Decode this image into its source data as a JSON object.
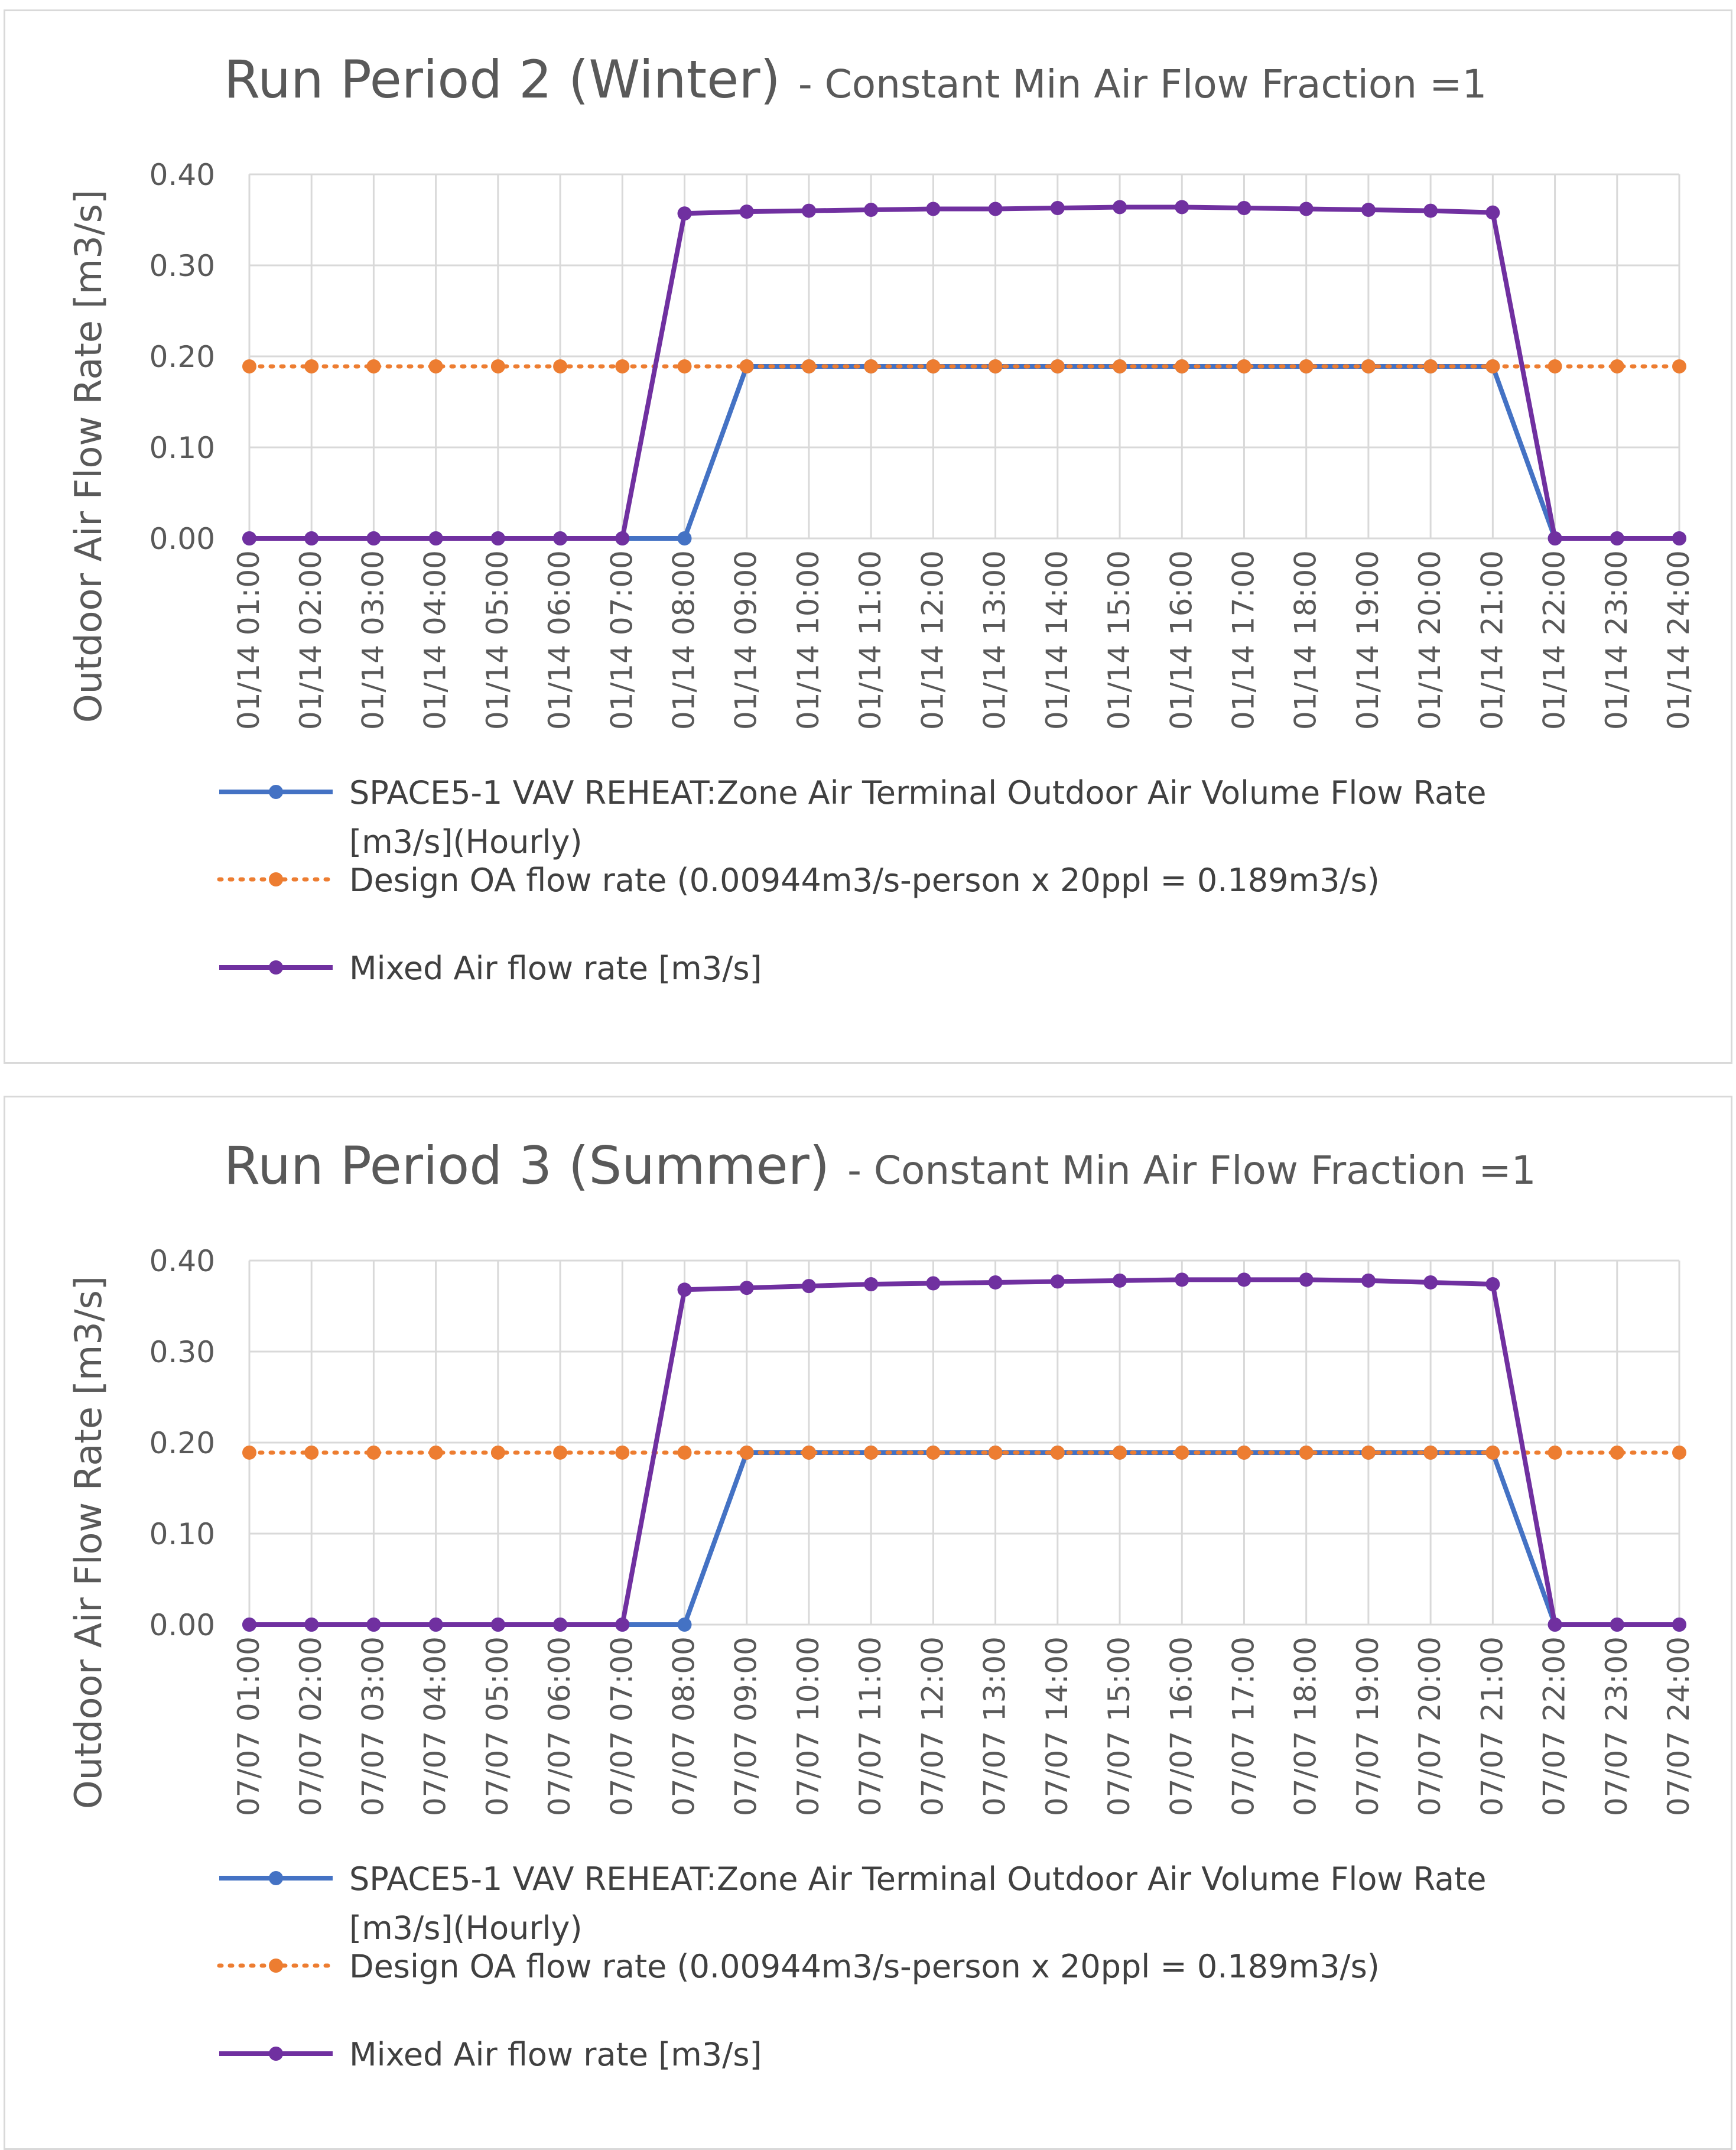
{
  "colors": {
    "outdoor_air": "#4472c4",
    "design_oa": "#ed7d31",
    "mixed_air": "#7030a0",
    "grid": "#d9d9d9",
    "text": "#595959"
  },
  "chart_data": [
    {
      "type": "line",
      "title": "Run Period 2 (Winter)",
      "subtitle": "- Constant Min Air Flow Fraction =1",
      "ylabel": "Outdoor Air Flow Rate [m3/s]",
      "xlabel": "",
      "ylim": [
        0,
        0.4
      ],
      "yticks": [
        "0.00",
        "0.10",
        "0.20",
        "0.30",
        "0.40"
      ],
      "grid": true,
      "legend_position": "bottom",
      "categories": [
        "01/14  01:00",
        "01/14  02:00",
        "01/14  03:00",
        "01/14  04:00",
        "01/14  05:00",
        "01/14  06:00",
        "01/14  07:00",
        "01/14  08:00",
        "01/14  09:00",
        "01/14  10:00",
        "01/14  11:00",
        "01/14  12:00",
        "01/14  13:00",
        "01/14  14:00",
        "01/14  15:00",
        "01/14  16:00",
        "01/14  17:00",
        "01/14  18:00",
        "01/14  19:00",
        "01/14  20:00",
        "01/14  21:00",
        "01/14  22:00",
        "01/14  23:00",
        "01/14  24:00"
      ],
      "series": [
        {
          "name": "SPACE5-1 VAV REHEAT:Zone Air Terminal Outdoor Air Volume Flow Rate [m3/s](Hourly)",
          "legend_lines": [
            "SPACE5-1 VAV REHEAT:Zone Air Terminal Outdoor Air Volume Flow Rate",
            "[m3/s](Hourly)"
          ],
          "color_key": "outdoor_air",
          "dash": "solid",
          "values": [
            0,
            0,
            0,
            0,
            0,
            0,
            0,
            0,
            0.189,
            0.189,
            0.189,
            0.189,
            0.189,
            0.189,
            0.189,
            0.189,
            0.189,
            0.189,
            0.189,
            0.189,
            0.189,
            0,
            0,
            0
          ]
        },
        {
          "name": "Design OA flow rate (0.00944m3/s-person x 20ppl = 0.189m3/s)",
          "legend_lines": [
            "Design OA flow rate (0.00944m3/s-person x 20ppl = 0.189m3/s)"
          ],
          "color_key": "design_oa",
          "dash": "dotted",
          "values": [
            0.189,
            0.189,
            0.189,
            0.189,
            0.189,
            0.189,
            0.189,
            0.189,
            0.189,
            0.189,
            0.189,
            0.189,
            0.189,
            0.189,
            0.189,
            0.189,
            0.189,
            0.189,
            0.189,
            0.189,
            0.189,
            0.189,
            0.189,
            0.189
          ]
        },
        {
          "name": "Mixed Air flow rate [m3/s]",
          "legend_lines": [
            "Mixed Air flow rate [m3/s]"
          ],
          "color_key": "mixed_air",
          "dash": "solid",
          "values": [
            0,
            0,
            0,
            0,
            0,
            0,
            0,
            0.357,
            0.359,
            0.36,
            0.361,
            0.362,
            0.362,
            0.363,
            0.364,
            0.364,
            0.363,
            0.362,
            0.361,
            0.36,
            0.358,
            0,
            0,
            0
          ]
        }
      ]
    },
    {
      "type": "line",
      "title": "Run Period 3 (Summer)",
      "subtitle": "- Constant Min Air Flow Fraction =1",
      "ylabel": "Outdoor Air Flow Rate [m3/s]",
      "xlabel": "",
      "ylim": [
        0,
        0.4
      ],
      "yticks": [
        "0.00",
        "0.10",
        "0.20",
        "0.30",
        "0.40"
      ],
      "grid": true,
      "legend_position": "bottom",
      "categories": [
        "07/07  01:00",
        "07/07  02:00",
        "07/07  03:00",
        "07/07  04:00",
        "07/07  05:00",
        "07/07  06:00",
        "07/07  07:00",
        "07/07  08:00",
        "07/07  09:00",
        "07/07  10:00",
        "07/07  11:00",
        "07/07  12:00",
        "07/07  13:00",
        "07/07  14:00",
        "07/07  15:00",
        "07/07  16:00",
        "07/07  17:00",
        "07/07  18:00",
        "07/07  19:00",
        "07/07  20:00",
        "07/07  21:00",
        "07/07  22:00",
        "07/07  23:00",
        "07/07  24:00"
      ],
      "series": [
        {
          "name": "SPACE5-1 VAV REHEAT:Zone Air Terminal Outdoor Air Volume Flow Rate [m3/s](Hourly)",
          "legend_lines": [
            "SPACE5-1 VAV REHEAT:Zone Air Terminal Outdoor Air Volume Flow Rate",
            "[m3/s](Hourly)"
          ],
          "color_key": "outdoor_air",
          "dash": "solid",
          "values": [
            0,
            0,
            0,
            0,
            0,
            0,
            0,
            0,
            0.189,
            0.189,
            0.189,
            0.189,
            0.189,
            0.189,
            0.189,
            0.189,
            0.189,
            0.189,
            0.189,
            0.189,
            0.189,
            0,
            0,
            0
          ]
        },
        {
          "name": "Design OA flow rate (0.00944m3/s-person x 20ppl = 0.189m3/s)",
          "legend_lines": [
            "Design OA flow rate (0.00944m3/s-person x 20ppl = 0.189m3/s)"
          ],
          "color_key": "design_oa",
          "dash": "dotted",
          "values": [
            0.189,
            0.189,
            0.189,
            0.189,
            0.189,
            0.189,
            0.189,
            0.189,
            0.189,
            0.189,
            0.189,
            0.189,
            0.189,
            0.189,
            0.189,
            0.189,
            0.189,
            0.189,
            0.189,
            0.189,
            0.189,
            0.189,
            0.189,
            0.189
          ]
        },
        {
          "name": "Mixed Air flow rate [m3/s]",
          "legend_lines": [
            "Mixed Air flow rate [m3/s]"
          ],
          "color_key": "mixed_air",
          "dash": "solid",
          "values": [
            0,
            0,
            0,
            0,
            0,
            0,
            0,
            0.368,
            0.37,
            0.372,
            0.374,
            0.375,
            0.376,
            0.377,
            0.378,
            0.379,
            0.379,
            0.379,
            0.378,
            0.376,
            0.374,
            0,
            0,
            0
          ]
        }
      ]
    }
  ]
}
